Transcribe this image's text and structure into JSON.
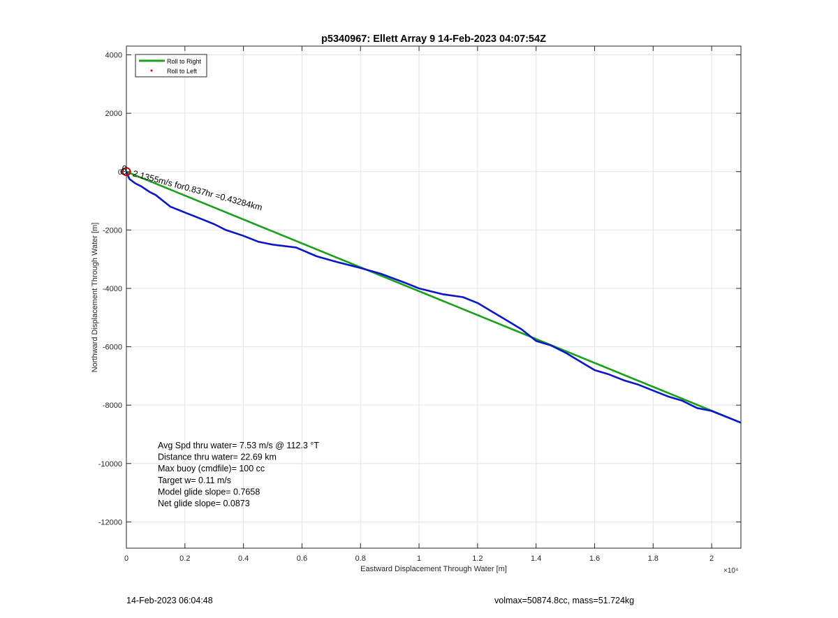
{
  "chart_data": {
    "type": "line",
    "title": "p5340967: Ellett Array 9 14-Feb-2023 04:07:54Z",
    "xlabel": "Eastward Displacement Through Water [m]",
    "ylabel": "Northward Displacement Through Water [m]",
    "x_exponent_label": "×10⁴",
    "xlim": [
      0,
      21000
    ],
    "ylim": [
      -12900,
      4300
    ],
    "x_ticks": [
      0,
      2000,
      4000,
      6000,
      8000,
      10000,
      12000,
      14000,
      16000,
      18000,
      20000
    ],
    "x_tick_labels": [
      "0",
      "0.2",
      "0.4",
      "0.6",
      "0.8",
      "1",
      "1.2",
      "1.4",
      "1.6",
      "1.8",
      "2"
    ],
    "y_ticks": [
      4000,
      2000,
      0,
      -2000,
      -4000,
      -6000,
      -8000,
      -10000,
      -12000
    ],
    "y_tick_labels": [
      "4000",
      "2000",
      "0",
      "-2000",
      "-4000",
      "-6000",
      "-8000",
      "-10000",
      "-12000"
    ],
    "grid": true,
    "legend": {
      "placement": "top-left",
      "entries": [
        {
          "label": "Roll to Right",
          "color": "#1aa01a",
          "marker": "line"
        },
        {
          "label": "Roll to Left",
          "color": "#e00000",
          "marker": "dot"
        }
      ]
    },
    "series": [
      {
        "color": "#1aa01a",
        "x": [
          0,
          21000
        ],
        "y": [
          0,
          -8600
        ]
      },
      {
        "color": "#0a16c8",
        "x": [
          0,
          100,
          300,
          500,
          800,
          1000,
          1500,
          2000,
          2500,
          3000,
          3400,
          4000,
          4500,
          5000,
          5800,
          6500,
          7200,
          8000,
          8700,
          9500,
          10000,
          10800,
          11500,
          12000,
          12500,
          13000,
          13500,
          14000,
          14500,
          15000,
          15500,
          16000,
          16500,
          17000,
          17500,
          18000,
          18500,
          19000,
          19500,
          20000,
          20500,
          21000
        ],
        "y": [
          0,
          -250,
          -400,
          -500,
          -700,
          -800,
          -1200,
          -1400,
          -1600,
          -1800,
          -2000,
          -2200,
          -2400,
          -2500,
          -2600,
          -2900,
          -3100,
          -3300,
          -3500,
          -3800,
          -4000,
          -4200,
          -4300,
          -4500,
          -4800,
          -5100,
          -5400,
          -5800,
          -5950,
          -6200,
          -6500,
          -6800,
          -6950,
          -7150,
          -7300,
          -7500,
          -7700,
          -7850,
          -8100,
          -8200,
          -8400,
          -8600
        ]
      }
    ],
    "annotations": [
      {
        "text": "2.1355m/s for0.837hr =0.43284km",
        "x": 200,
        "y": -150,
        "rotation_deg": 15
      },
      {
        "text": "0",
        "x": -150,
        "y": 0,
        "rotation_deg": 0
      }
    ],
    "stats_box": [
      "Avg Spd thru water=  7.53 m/s @ 112.3 °T",
      "Distance thru water= 22.69 km",
      "Max buoy (cmdfile)= 100 cc",
      "Target w= 0.11 m/s",
      "Model glide slope= 0.7658",
      "Net glide slope= 0.0873"
    ]
  },
  "footer": {
    "left": "14-Feb-2023 06:04:48",
    "right": "volmax=50874.8cc, mass=51.724kg"
  }
}
